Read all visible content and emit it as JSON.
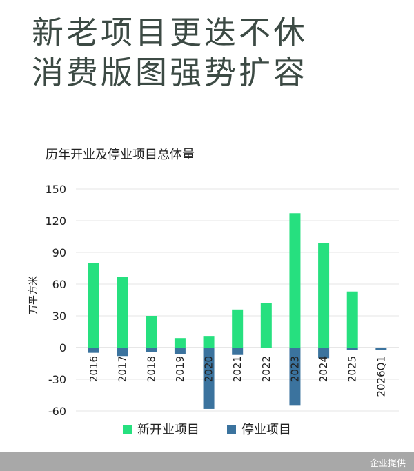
{
  "headline": {
    "line1": "新老项目更迭不休",
    "line2": "消费版图强势扩容"
  },
  "footer": {
    "source": "企业提供"
  },
  "colors": {
    "new": "#26e07f",
    "closed": "#3b739e",
    "grid": "#e6e6e6",
    "text": "#222222"
  },
  "chart_data": {
    "type": "bar",
    "title": "历年开业及停业项目总体量",
    "ylabel": "万平方米",
    "xlabel": "",
    "categories": [
      "2016",
      "2017",
      "2018",
      "2019",
      "2020",
      "2021",
      "2022",
      "2023",
      "2024",
      "2025",
      "2026Q1"
    ],
    "series": [
      {
        "name": "新开业项目",
        "values": [
          80,
          67,
          30,
          9,
          11,
          36,
          42,
          127,
          99,
          53,
          0
        ]
      },
      {
        "name": "停业项目",
        "values": [
          -5,
          -8,
          -4,
          -6,
          -58,
          -7,
          0,
          -55,
          -10,
          -2,
          -2
        ]
      }
    ],
    "ylim": [
      -60,
      150
    ],
    "yticks": [
      150,
      120,
      90,
      60,
      30,
      0,
      -30,
      -60
    ],
    "legend": "bottom",
    "grid": true
  }
}
